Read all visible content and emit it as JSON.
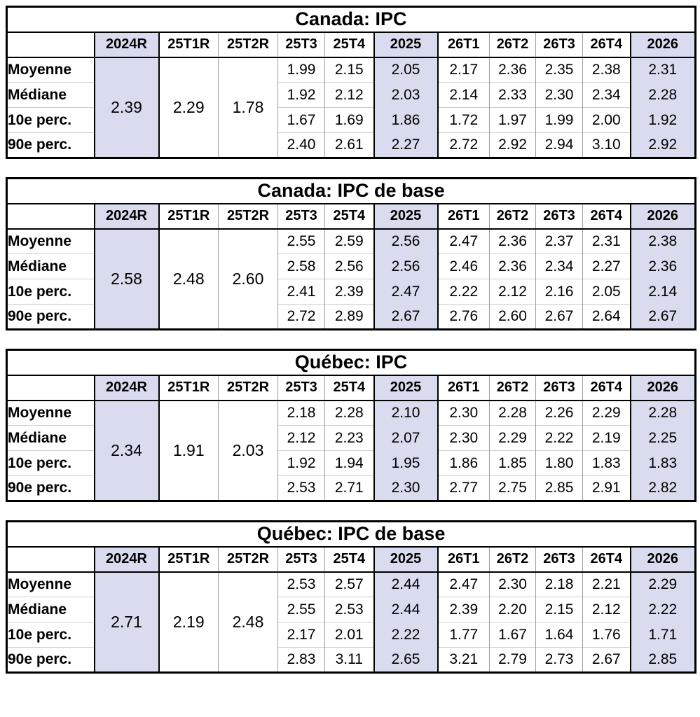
{
  "colors": {
    "highlight": "#d8dcee",
    "border": "#000000",
    "grid_vertical": "#9e9e9e",
    "grid_horizontal": "#cfcfcf"
  },
  "corner_label": "",
  "column_headers": [
    "2024R",
    "25T1R",
    "25T2R",
    "25T3",
    "25T4",
    "2025",
    "26T1",
    "26T2",
    "26T3",
    "26T4",
    "2026"
  ],
  "row_labels": [
    "Moyenne",
    "Médiane",
    "10e perc.",
    "90e perc."
  ],
  "tables": [
    {
      "title": "Canada: IPC",
      "merged_values": [
        "2.39",
        "2.29",
        "1.78"
      ],
      "rows": [
        [
          "1.99",
          "2.15",
          "2.05",
          "2.17",
          "2.36",
          "2.35",
          "2.38",
          "2.31"
        ],
        [
          "1.92",
          "2.12",
          "2.03",
          "2.14",
          "2.33",
          "2.30",
          "2.34",
          "2.28"
        ],
        [
          "1.67",
          "1.69",
          "1.86",
          "1.72",
          "1.97",
          "1.99",
          "2.00",
          "1.92"
        ],
        [
          "2.40",
          "2.61",
          "2.27",
          "2.72",
          "2.92",
          "2.94",
          "3.10",
          "2.92"
        ]
      ]
    },
    {
      "title": "Canada: IPC de base",
      "merged_values": [
        "2.58",
        "2.48",
        "2.60"
      ],
      "rows": [
        [
          "2.55",
          "2.59",
          "2.56",
          "2.47",
          "2.36",
          "2.37",
          "2.31",
          "2.38"
        ],
        [
          "2.58",
          "2.56",
          "2.56",
          "2.46",
          "2.36",
          "2.34",
          "2.27",
          "2.36"
        ],
        [
          "2.41",
          "2.39",
          "2.47",
          "2.22",
          "2.12",
          "2.16",
          "2.05",
          "2.14"
        ],
        [
          "2.72",
          "2.89",
          "2.67",
          "2.76",
          "2.60",
          "2.67",
          "2.64",
          "2.67"
        ]
      ]
    },
    {
      "title": "Québec: IPC",
      "merged_values": [
        "2.34",
        "1.91",
        "2.03"
      ],
      "rows": [
        [
          "2.18",
          "2.28",
          "2.10",
          "2.30",
          "2.28",
          "2.26",
          "2.29",
          "2.28"
        ],
        [
          "2.12",
          "2.23",
          "2.07",
          "2.30",
          "2.29",
          "2.22",
          "2.19",
          "2.25"
        ],
        [
          "1.92",
          "1.94",
          "1.95",
          "1.86",
          "1.85",
          "1.80",
          "1.83",
          "1.83"
        ],
        [
          "2.53",
          "2.71",
          "2.30",
          "2.77",
          "2.75",
          "2.85",
          "2.91",
          "2.82"
        ]
      ]
    },
    {
      "title": "Québec: IPC de base",
      "merged_values": [
        "2.71",
        "2.19",
        "2.48"
      ],
      "rows": [
        [
          "2.53",
          "2.57",
          "2.44",
          "2.47",
          "2.30",
          "2.18",
          "2.21",
          "2.29"
        ],
        [
          "2.55",
          "2.53",
          "2.44",
          "2.39",
          "2.20",
          "2.15",
          "2.12",
          "2.22"
        ],
        [
          "2.17",
          "2.01",
          "2.22",
          "1.77",
          "1.67",
          "1.64",
          "1.76",
          "1.71"
        ],
        [
          "2.83",
          "3.11",
          "2.65",
          "3.21",
          "2.79",
          "2.73",
          "2.67",
          "2.85"
        ]
      ]
    }
  ]
}
